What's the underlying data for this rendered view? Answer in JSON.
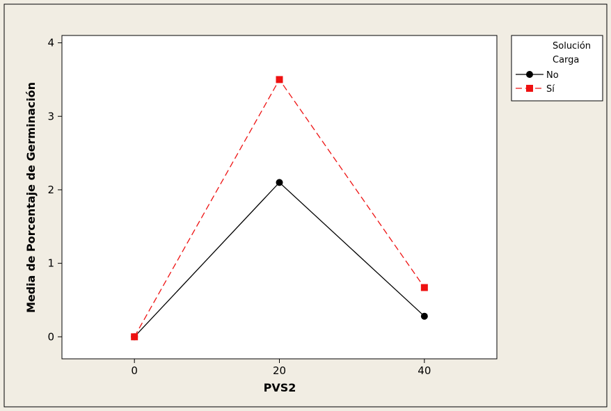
{
  "chart_data": {
    "type": "line",
    "title": "",
    "xlabel": "PVS2",
    "ylabel": "Media de Porcentaje de Germinación",
    "x": [
      0,
      20,
      40
    ],
    "xlim": [
      -10,
      50
    ],
    "ylim": [
      -0.3,
      4.1
    ],
    "x_ticks": [
      0,
      20,
      40
    ],
    "y_ticks": [
      0,
      1,
      2,
      3,
      4
    ],
    "grid": false,
    "legend": {
      "title": "Solución",
      "subtitle": "Carga",
      "placement": "right"
    },
    "series": [
      {
        "name": "No",
        "values": [
          0.0,
          2.1,
          0.28
        ],
        "color": "#000000",
        "marker": "circle",
        "line": "solid"
      },
      {
        "name": "Sí",
        "values": [
          0.0,
          3.5,
          0.67
        ],
        "color": "#ee1111",
        "marker": "square",
        "line": "dashed"
      }
    ]
  }
}
